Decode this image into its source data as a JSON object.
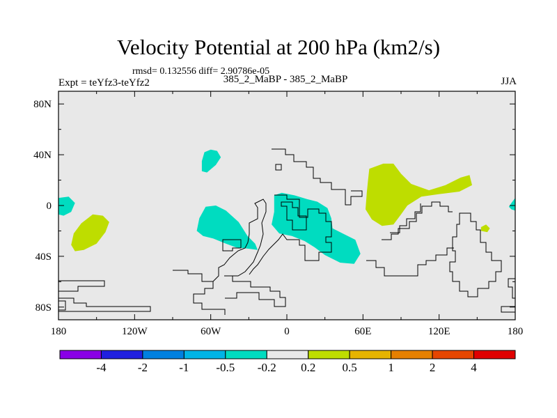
{
  "title": "Velocity Potential at 200 hPa (km2/s)",
  "stats": "rmsd= 0.132556 diff= 2.90786e-05",
  "expt": "Expt = teYfz3-teYfz2",
  "case": "385_2_MaBP - 385_2_MaBP",
  "season": "JJA",
  "chart_data": {
    "type": "contour-map",
    "title": "Velocity Potential at 200 hPa (km2/s)",
    "xlim": [
      -180,
      180
    ],
    "ylim": [
      -90,
      90
    ],
    "x_ticks": [
      {
        "value": -180,
        "label": "180"
      },
      {
        "value": -120,
        "label": "120W"
      },
      {
        "value": -60,
        "label": "60W"
      },
      {
        "value": 0,
        "label": "0"
      },
      {
        "value": 60,
        "label": "60E"
      },
      {
        "value": 120,
        "label": "120E"
      },
      {
        "value": 180,
        "label": "180"
      }
    ],
    "y_ticks": [
      {
        "value": 80,
        "label": "80N"
      },
      {
        "value": 40,
        "label": "40N"
      },
      {
        "value": 0,
        "label": "0"
      },
      {
        "value": -40,
        "label": "40S"
      },
      {
        "value": -80,
        "label": "80S"
      }
    ],
    "background_color": "#e8e8e8",
    "regions": [
      {
        "name": "Negative anomaly 40N 60W",
        "level": "-0.5 to -0.2",
        "color": "#00dcc0",
        "points": [
          [
            -65,
            42
          ],
          [
            -60,
            44
          ],
          [
            -55,
            43
          ],
          [
            -52,
            38
          ],
          [
            -56,
            32
          ],
          [
            -63,
            26
          ],
          [
            -67,
            27
          ],
          [
            -67,
            35
          ]
        ]
      },
      {
        "name": "Negative anomaly equatorial west edge",
        "level": "-0.5 to -0.2",
        "color": "#00dcc0",
        "points": [
          [
            -180,
            6
          ],
          [
            -172,
            7
          ],
          [
            -167,
            2
          ],
          [
            -170,
            -5
          ],
          [
            -176,
            -8
          ],
          [
            -180,
            -7
          ]
        ]
      },
      {
        "name": "Negative anomaly east edge",
        "level": "-0.5 to -0.2",
        "color": "#00dcc0",
        "points": [
          [
            180,
            6
          ],
          [
            177,
            2
          ],
          [
            175,
            -1
          ],
          [
            177,
            -3
          ],
          [
            180,
            -4
          ]
        ]
      },
      {
        "name": "Negative anomaly South America",
        "level": "-0.5 to -0.2",
        "color": "#00dcc0",
        "points": [
          [
            -64,
            -1
          ],
          [
            -56,
            0
          ],
          [
            -48,
            -4
          ],
          [
            -38,
            -13
          ],
          [
            -31,
            -24
          ],
          [
            -25,
            -30
          ],
          [
            -23,
            -35
          ],
          [
            -30,
            -34
          ],
          [
            -40,
            -33
          ],
          [
            -48,
            -30
          ],
          [
            -58,
            -26
          ],
          [
            -66,
            -24
          ],
          [
            -71,
            -20
          ],
          [
            -69,
            -10
          ]
        ]
      },
      {
        "name": "Negative anomaly Africa",
        "level": "-0.5 to -0.2",
        "color": "#00dcc0",
        "points": [
          [
            -10,
            8
          ],
          [
            -4,
            10
          ],
          [
            6,
            8
          ],
          [
            16,
            5
          ],
          [
            24,
            3
          ],
          [
            32,
            -2
          ],
          [
            35,
            -10
          ],
          [
            36,
            -18
          ],
          [
            44,
            -22
          ],
          [
            54,
            -27
          ],
          [
            58,
            -38
          ],
          [
            53,
            -46
          ],
          [
            42,
            -45
          ],
          [
            30,
            -39
          ],
          [
            22,
            -33
          ],
          [
            14,
            -28
          ],
          [
            4,
            -24
          ],
          [
            -6,
            -22
          ],
          [
            -12,
            -15
          ],
          [
            -10,
            -5
          ]
        ]
      },
      {
        "name": "Positive anomaly Asia",
        "level": "0.2 to 0.5",
        "color": "#bedd00",
        "points": [
          [
            65,
            29
          ],
          [
            76,
            33
          ],
          [
            84,
            33
          ],
          [
            90,
            25
          ],
          [
            98,
            17
          ],
          [
            112,
            12
          ],
          [
            125,
            16
          ],
          [
            137,
            22
          ],
          [
            144,
            24
          ],
          [
            146,
            16
          ],
          [
            136,
            11
          ],
          [
            120,
            9
          ],
          [
            106,
            7
          ],
          [
            95,
            0
          ],
          [
            90,
            -7
          ],
          [
            84,
            -15
          ],
          [
            75,
            -16
          ],
          [
            67,
            -11
          ],
          [
            62,
            -3
          ],
          [
            63,
            10
          ],
          [
            64,
            20
          ]
        ]
      },
      {
        "name": "Positive anomaly South Pacific",
        "level": "0.2 to 0.5",
        "color": "#bedd00",
        "points": [
          [
            -140,
            -13
          ],
          [
            -145,
            -8
          ],
          [
            -153,
            -7
          ],
          [
            -162,
            -14
          ],
          [
            -168,
            -22
          ],
          [
            -170,
            -31
          ],
          [
            -167,
            -36
          ],
          [
            -160,
            -35
          ],
          [
            -150,
            -30
          ],
          [
            -143,
            -21
          ]
        ]
      },
      {
        "name": "Positive anomaly small",
        "level": "0.2 to 0.5",
        "color": "#bedd00",
        "points": [
          [
            153,
            -17
          ],
          [
            157,
            -15
          ],
          [
            160,
            -18
          ],
          [
            158,
            -21
          ],
          [
            153,
            -20
          ]
        ]
      }
    ],
    "colorbar": {
      "colors": [
        "#8a00e6",
        "#2020e0",
        "#0080e0",
        "#00b4e6",
        "#00dcc0",
        "#e8e8e8",
        "#bedd00",
        "#e6b400",
        "#e68000",
        "#e64600",
        "#e00000"
      ],
      "labels": [
        "-4",
        "-2",
        "-1",
        "-0.5",
        "-0.2",
        "0.2",
        "0.5",
        "1",
        "2",
        "4"
      ]
    }
  }
}
